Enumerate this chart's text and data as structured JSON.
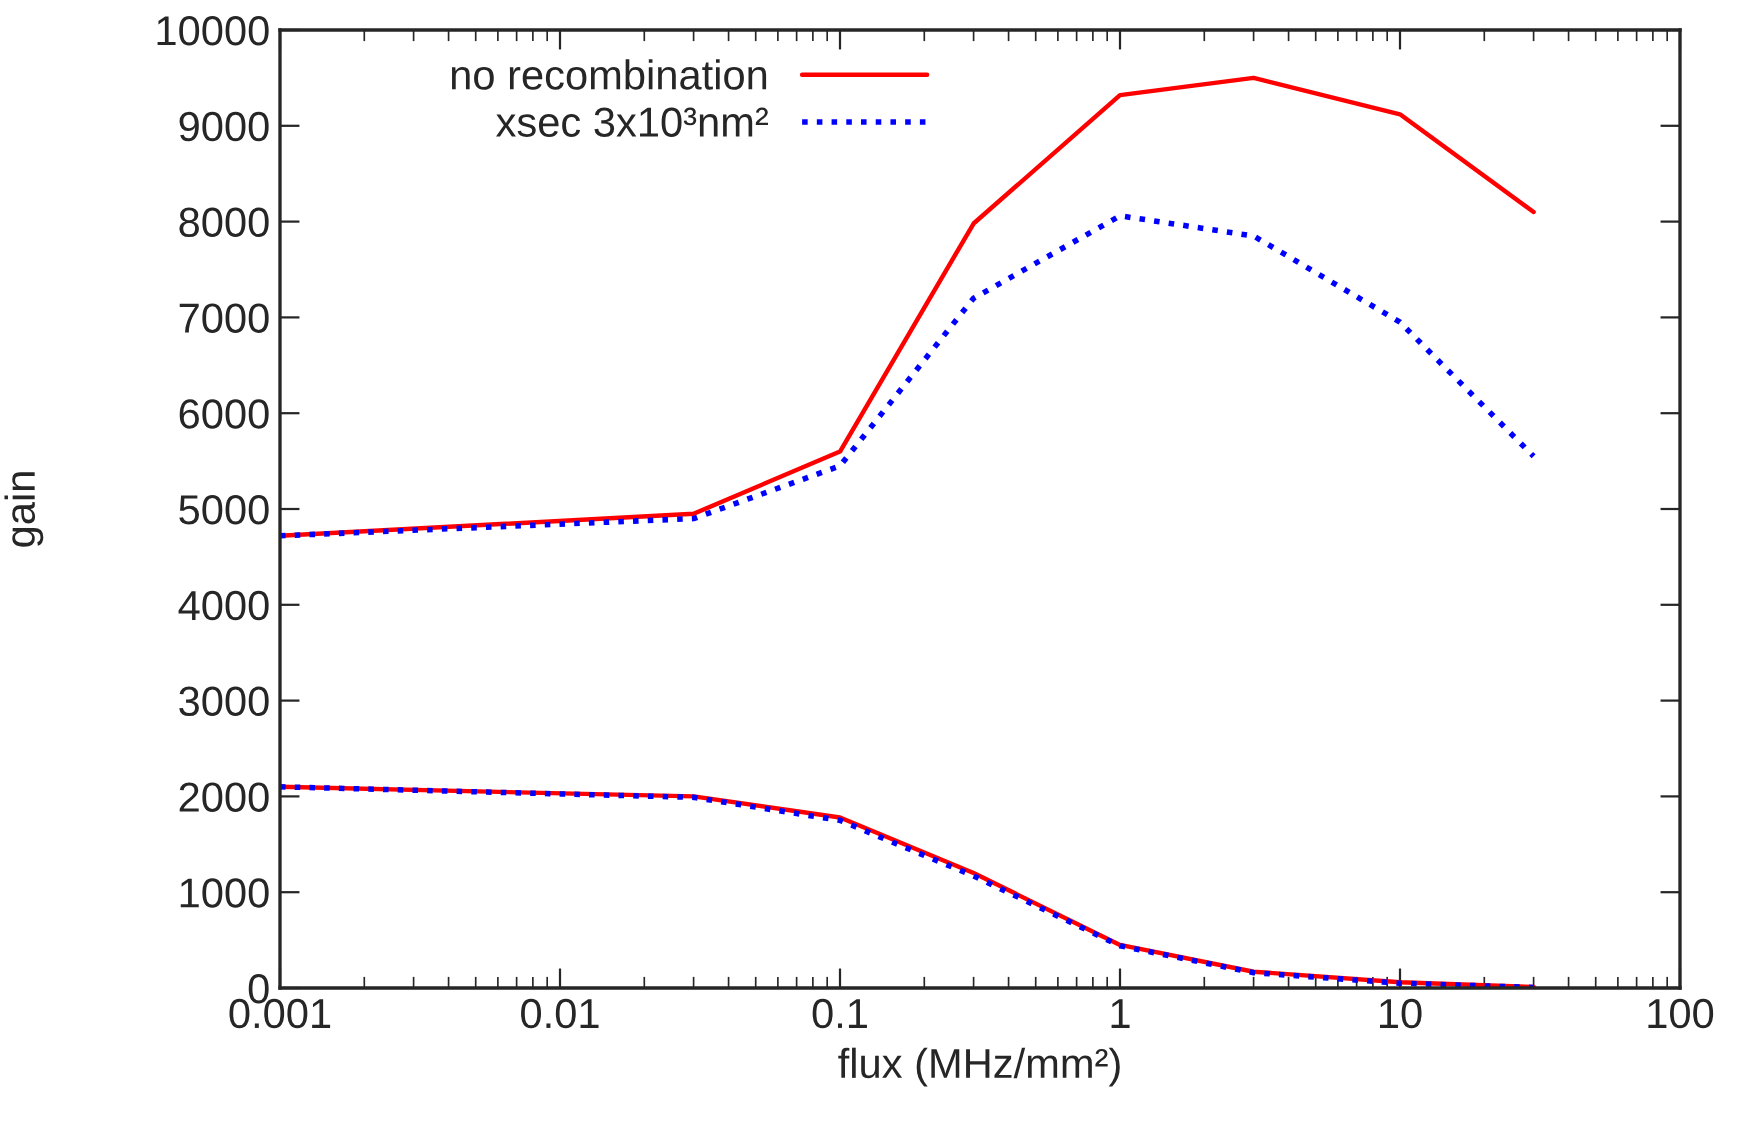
{
  "chart_data": {
    "type": "line",
    "xlabel": "flux (MHz/mm²)",
    "ylabel": "gain",
    "log": "x",
    "x": [
      0.001,
      0.03,
      0.1,
      0.3,
      1,
      3,
      10,
      30
    ],
    "series": [
      {
        "name": "no recombination",
        "color": "#ff0000",
        "line_style": "solid",
        "values": [
          4720,
          4950,
          5600,
          7980,
          9320,
          9500,
          9120,
          8100
        ]
      },
      {
        "name": "xsec 3x10³nm²",
        "color": "#0000ff",
        "line_style": "dotted",
        "values": [
          4720,
          4900,
          5450,
          7200,
          8060,
          7850,
          6950,
          5550
        ]
      },
      {
        "color": "#ff0000",
        "line_style": "solid",
        "values": [
          2100,
          2000,
          1780,
          1200,
          450,
          170,
          60,
          10
        ]
      },
      {
        "color": "#0000ff",
        "line_style": "dotted",
        "values": [
          2100,
          1990,
          1750,
          1170,
          440,
          160,
          50,
          5
        ]
      }
    ],
    "xlim": [
      0.001,
      100
    ],
    "xticks": [
      0.001,
      0.01,
      0.1,
      1,
      10,
      100
    ],
    "ylim": [
      0,
      10000
    ],
    "yticks": [
      0,
      1000,
      2000,
      3000,
      4000,
      5000,
      6000,
      7000,
      8000,
      9000,
      10000
    ],
    "grid": false,
    "legend": "top left",
    "marker": "none"
  }
}
